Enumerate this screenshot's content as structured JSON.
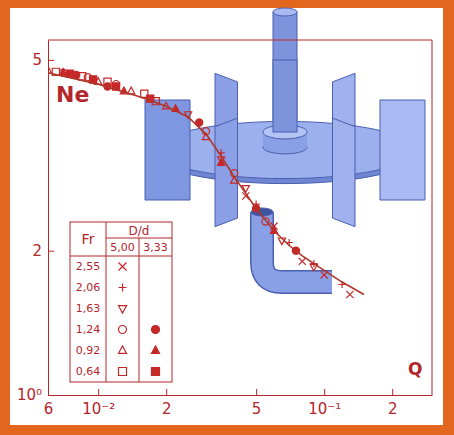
{
  "chart_data": {
    "type": "scatter",
    "x_label": "Q",
    "y_label": "Ne",
    "log": true,
    "xlim": [
      0.006,
      0.3
    ],
    "ylim": [
      1,
      5.5
    ],
    "xticks": [
      {
        "value": 0.006,
        "label": "6"
      },
      {
        "value": 0.01,
        "label": "10⁻²"
      },
      {
        "value": 0.02,
        "label": "2"
      },
      {
        "value": 0.05,
        "label": "5"
      },
      {
        "value": 0.1,
        "label": "10⁻¹"
      },
      {
        "value": 0.2,
        "label": "2"
      }
    ],
    "yticks": [
      {
        "value": 1,
        "label": "10⁰"
      },
      2,
      5
    ],
    "legend": "bottom-left",
    "legend_title": "Fr",
    "legend_group_title": "D/d",
    "series": [
      {
        "name": "2,55",
        "group": "5,00",
        "marker": "x",
        "color": "#c62828",
        "x": [
          0.045,
          0.06,
          0.08,
          0.1,
          0.13
        ],
        "values": [
          2.6,
          2.25,
          1.9,
          1.78,
          1.62
        ]
      },
      {
        "name": "2,06",
        "group": "5,00",
        "marker": "plus",
        "color": "#c62828",
        "x": [
          0.035,
          0.05,
          0.07,
          0.09,
          0.12
        ],
        "values": [
          3.2,
          2.5,
          2.08,
          1.88,
          1.7
        ]
      },
      {
        "name": "1,63",
        "group": "5,00",
        "marker": "triangle-down-open",
        "color": "#c62828",
        "x": [
          0.025,
          0.035,
          0.045,
          0.065,
          0.09
        ],
        "values": [
          3.85,
          3.1,
          2.7,
          2.1,
          1.85
        ]
      },
      {
        "name": "1,24",
        "group": "5,00",
        "marker": "circle-open",
        "color": "#c62828",
        "x": [
          0.007,
          0.009,
          0.012,
          0.03,
          0.04,
          0.055
        ],
        "values": [
          4.7,
          4.6,
          4.45,
          3.55,
          2.9,
          2.3
        ]
      },
      {
        "name": "1,24",
        "group": "3,33",
        "marker": "circle",
        "color": "#c62828",
        "x": [
          0.008,
          0.011,
          0.028,
          0.05,
          0.075
        ],
        "values": [
          4.65,
          4.4,
          3.7,
          2.45,
          2.0
        ]
      },
      {
        "name": "0,92",
        "group": "5,00",
        "marker": "triangle-open",
        "color": "#c62828",
        "x": [
          0.006,
          0.01,
          0.014,
          0.02,
          0.03,
          0.04
        ],
        "values": [
          4.75,
          4.5,
          4.3,
          4.0,
          3.45,
          2.8
        ]
      },
      {
        "name": "0,92",
        "group": "3,33",
        "marker": "triangle",
        "color": "#c62828",
        "x": [
          0.007,
          0.013,
          0.022,
          0.035,
          0.06
        ],
        "values": [
          4.7,
          4.3,
          3.95,
          3.05,
          2.2
        ]
      },
      {
        "name": "0,64",
        "group": "5,00",
        "marker": "square-open",
        "color": "#c62828",
        "x": [
          0.0065,
          0.0085,
          0.011,
          0.016,
          0.018
        ],
        "values": [
          4.72,
          4.62,
          4.5,
          4.25,
          4.1
        ]
      },
      {
        "name": "0,64",
        "group": "3,33",
        "marker": "square",
        "color": "#c62828",
        "x": [
          0.0075,
          0.0095,
          0.012,
          0.017
        ],
        "values": [
          4.68,
          4.55,
          4.4,
          4.15
        ]
      },
      {
        "type": "line",
        "color": "#b0362a",
        "x": [
          0.006,
          0.01,
          0.015,
          0.02,
          0.025,
          0.03,
          0.035,
          0.04,
          0.05,
          0.06,
          0.07,
          0.08,
          0.1,
          0.12,
          0.15
        ],
        "values": [
          4.7,
          4.45,
          4.2,
          4.0,
          3.8,
          3.5,
          3.15,
          2.85,
          2.45,
          2.2,
          2.05,
          1.95,
          1.82,
          1.72,
          1.62
        ]
      }
    ]
  }
}
